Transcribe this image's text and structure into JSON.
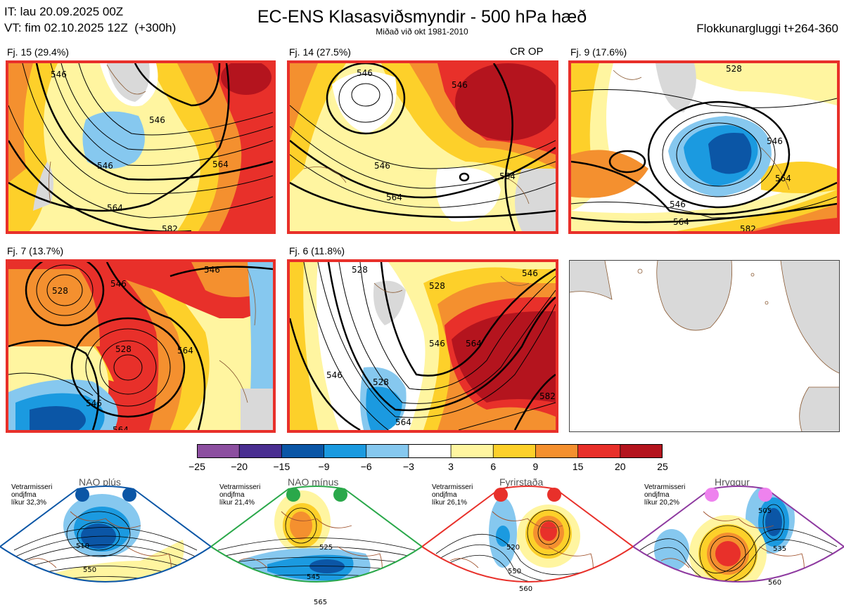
{
  "header": {
    "init_time": "IT: lau 20.09.2025 00Z",
    "valid_time": "VT: fim 02.10.2025 12Z  (+300h)",
    "title": "EC-ENS Klasasviðsmyndir - 500 hPa hæð",
    "subtitle": "Miðað við okt 1981-2010",
    "window": "Flokkunargluggi t+264-360"
  },
  "colors": {
    "border_red": "#e8302a",
    "coast": "#8a5a33",
    "land": "#d9d9d9"
  },
  "chart_data": [
    {
      "type": "heatmap",
      "title": "Clustered 500 hPa height anomaly maps",
      "clusters": [
        {
          "label": "Fj. 15 (29.4%)",
          "members": 15,
          "percent": 29.4,
          "contour_labels": [
            "546",
            "546",
            "564",
            "564",
            "582",
            "546"
          ]
        },
        {
          "label": "Fj. 14 (27.5%)",
          "members": 14,
          "percent": 27.5,
          "contour_labels": [
            "546",
            "546",
            "564",
            "564",
            "546"
          ],
          "tag": "CR OP"
        },
        {
          "label": "Fj. 9 (17.6%)",
          "members": 9,
          "percent": 17.6,
          "contour_labels": [
            "546",
            "546",
            "564",
            "564",
            "528",
            "582"
          ]
        },
        {
          "label": "Fj. 7 (13.7%)",
          "members": 7,
          "percent": 13.7,
          "contour_labels": [
            "528",
            "546",
            "528",
            "546",
            "564",
            "564",
            "546"
          ]
        },
        {
          "label": "Fj. 6 (11.8%)",
          "members": 6,
          "percent": 11.8,
          "contour_labels": [
            "546",
            "528",
            "528",
            "546",
            "564",
            "564",
            "582",
            "546",
            "528"
          ]
        }
      ]
    },
    {
      "type": "heatmap",
      "title": "Anomaly colour scale",
      "ticks": [
        "−25",
        "−20",
        "−15",
        "−9",
        "−6",
        "−3",
        "3",
        "6",
        "9",
        "15",
        "20",
        "25"
      ],
      "bin_colors": [
        "#8c4fa0",
        "#4a2f91",
        "#0b56a6",
        "#1b9ae0",
        "#86c8ef",
        "#ffffff",
        "#fff5a0",
        "#fdd02a",
        "#f4902f",
        "#e8302a",
        "#b4141e"
      ]
    },
    {
      "type": "heatmap",
      "title": "Weather regimes",
      "regimes": [
        {
          "name": "NAO plús",
          "info": "Vetrarmisseri\nondjfma\nlíkur 32,3%",
          "probability": 32.3,
          "color": "#0b56a6",
          "contour_labels": [
            "510",
            "550"
          ]
        },
        {
          "name": "NAO mínus",
          "info": "Vetrarmisseri\nondjfma\nlíkur 21,4%",
          "probability": 21.4,
          "color": "#2aa84a",
          "contour_labels": [
            "525",
            "545",
            "565"
          ]
        },
        {
          "name": "Fyrirstaða",
          "info": "Vetrarmisseri\nondjfma\nlíkur 26,1%",
          "probability": 26.1,
          "color": "#e8302a",
          "contour_labels": [
            "520",
            "550",
            "560"
          ]
        },
        {
          "name": "Hryggur",
          "info": "Vetrarmisseri\nondjfma\nlíkur 20,2%",
          "probability": 20.2,
          "color": "#8e3aa0",
          "dot_color": "#ee82ee",
          "contour_labels": [
            "505",
            "535",
            "560"
          ]
        }
      ]
    }
  ]
}
